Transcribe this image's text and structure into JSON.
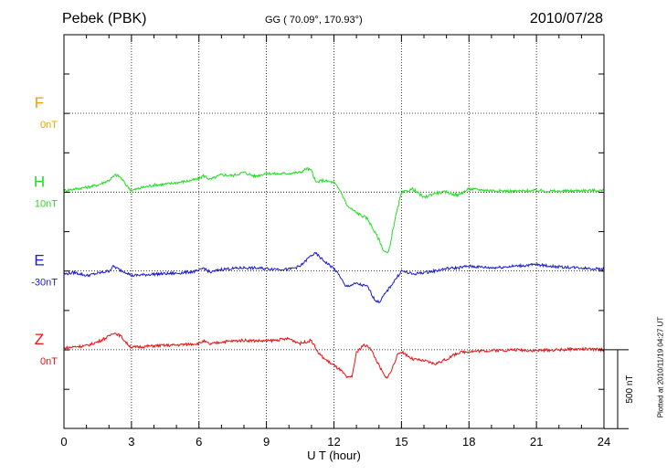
{
  "header": {
    "station": "Pebek (PBK)",
    "coords": "GG ( 70.09°, 170.93°)",
    "date": "2010/07/28"
  },
  "footer": {
    "plotted": "Plotted at 2010/11/19 04:27 UT"
  },
  "chart_data": {
    "type": "line",
    "title": "Pebek (PBK)",
    "subtitle": "GG ( 70.09°, 170.93°)",
    "date": "2010/07/28",
    "xlabel": "U T (hour)",
    "ylabel": "",
    "xlim": [
      0,
      24
    ],
    "xticks": [
      0,
      3,
      6,
      9,
      12,
      15,
      18,
      21,
      24
    ],
    "x_tick_labels": [
      "0",
      "3",
      "6",
      "9",
      "12",
      "15",
      "18",
      "21",
      "24"
    ],
    "scale_bar": {
      "label": "500 nT",
      "value": 500
    },
    "grid": true,
    "offset_step_nT": 500,
    "series": [
      {
        "name": "F",
        "baseline_label": "0nT",
        "color": "#f0a000",
        "offset_index": 0,
        "x": [],
        "values": []
      },
      {
        "name": "H",
        "baseline_label": "10nT",
        "color": "#22dd22",
        "offset_index": 1,
        "x": [
          0,
          0.5,
          1,
          1.5,
          2,
          2.3,
          2.5,
          2.8,
          3,
          3.5,
          4,
          4.5,
          5,
          5.5,
          6,
          6.2,
          6.5,
          7,
          7.5,
          8,
          8.5,
          9,
          9.5,
          10,
          10.5,
          10.8,
          11,
          11.2,
          11.5,
          12,
          12.3,
          12.6,
          13,
          13.5,
          13.8,
          14,
          14.2,
          14.4,
          14.5,
          14.6,
          14.8,
          15,
          15.5,
          16,
          16.5,
          17,
          17.5,
          18,
          18.5,
          19,
          20,
          21,
          22,
          23,
          24
        ],
        "values": [
          10,
          20,
          30,
          45,
          75,
          110,
          95,
          40,
          10,
          30,
          45,
          50,
          60,
          70,
          85,
          105,
          80,
          110,
          105,
          125,
          100,
          120,
          115,
          120,
          125,
          150,
          135,
          60,
          75,
          60,
          5,
          -90,
          -130,
          -170,
          -250,
          -300,
          -370,
          -390,
          -340,
          -250,
          -120,
          -5,
          20,
          -35,
          -5,
          0,
          -20,
          20,
          15,
          10,
          5,
          10,
          5,
          10,
          10
        ]
      },
      {
        "name": "E",
        "baseline_label": "-30nT",
        "color": "#1a1ad8",
        "offset_index": 2,
        "x": [
          0,
          0.5,
          1,
          1.5,
          2,
          2.2,
          2.5,
          2.8,
          3,
          3.5,
          4,
          5,
          6,
          6.2,
          6.5,
          7,
          8,
          9,
          10,
          10.5,
          11,
          11.2,
          11.5,
          12,
          12.3,
          12.5,
          13,
          13.5,
          13.8,
          14,
          14.2,
          14.5,
          15,
          15.5,
          16,
          16.5,
          17,
          17.5,
          18,
          19,
          20,
          21,
          22,
          23,
          24
        ],
        "values": [
          -20,
          -10,
          -30,
          -15,
          0,
          30,
          5,
          -10,
          -30,
          -25,
          -20,
          -15,
          0,
          20,
          -10,
          10,
          20,
          15,
          10,
          30,
          100,
          110,
          70,
          15,
          -40,
          -100,
          -80,
          -100,
          -180,
          -200,
          -160,
          -100,
          0,
          -20,
          -10,
          0,
          15,
          20,
          30,
          20,
          30,
          40,
          25,
          20,
          10
        ]
      },
      {
        "name": "Z",
        "baseline_label": "0nT",
        "color": "#ee1111",
        "offset_index": 3,
        "x": [
          0,
          0.5,
          1,
          1.5,
          2,
          2.2,
          2.5,
          2.8,
          3,
          3.5,
          4,
          5,
          6,
          6.2,
          6.5,
          7,
          8,
          9,
          10,
          10.5,
          11,
          11.3,
          11.6,
          12,
          12.3,
          12.6,
          12.8,
          13,
          13.3,
          13.6,
          14,
          14.3,
          14.5,
          14.8,
          15,
          15.5,
          16,
          16.5,
          17,
          17.5,
          18,
          19,
          20,
          21,
          22,
          23,
          24
        ],
        "values": [
          10,
          20,
          25,
          50,
          85,
          110,
          90,
          40,
          15,
          20,
          25,
          30,
          40,
          55,
          35,
          50,
          60,
          55,
          70,
          40,
          60,
          -20,
          -60,
          -100,
          -130,
          -180,
          -170,
          -20,
          30,
          15,
          -100,
          -180,
          -150,
          -40,
          -10,
          -60,
          -70,
          -90,
          -60,
          -20,
          -10,
          -5,
          0,
          -5,
          0,
          5,
          0
        ]
      }
    ]
  }
}
